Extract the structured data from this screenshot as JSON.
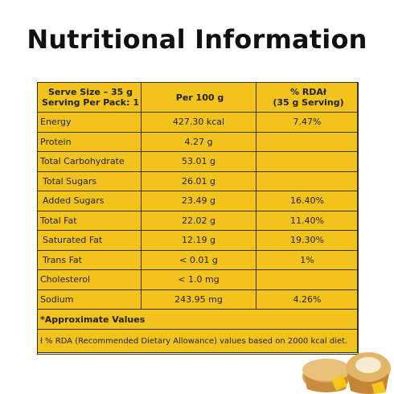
{
  "title": "Nutritional Information",
  "header": {
    "col1_line1": "Serve Size – 35 g",
    "col1_line2": "Serving Per Pack: 1",
    "col2": "Per 100 g",
    "col3_line1": "% RDAł",
    "col3_line2": "(35 g Serving)"
  },
  "rows": [
    {
      "name": "Energy",
      "per100": "427.30 kcal",
      "rda": "7.47%",
      "indent": false
    },
    {
      "name": "Protein",
      "per100": "4.27 g",
      "rda": "",
      "indent": false
    },
    {
      "name": "Total Carbohydrate",
      "per100": "53.01 g",
      "rda": "",
      "indent": false
    },
    {
      "name": "Total Sugars",
      "per100": "26.01 g",
      "rda": "",
      "indent": true
    },
    {
      "name": "Added Sugars",
      "per100": "23.49 g",
      "rda": "16.40%",
      "indent": true
    },
    {
      "name": "Total Fat",
      "per100": "22.02 g",
      "rda": "11.40%",
      "indent": false
    },
    {
      "name": "Saturated Fat",
      "per100": "12.19 g",
      "rda": "19.30%",
      "indent": true
    },
    {
      "name": "Trans Fat",
      "per100": "< 0.01 g",
      "rda": "1%",
      "indent": true
    },
    {
      "name": "Cholesterol",
      "per100": "< 1.0 mg",
      "rda": "",
      "indent": false
    },
    {
      "name": "Sodium",
      "per100": "243.95 mg",
      "rda": "4.26%",
      "indent": false
    }
  ],
  "footnote1": "*Approximate Values",
  "footnote2": "ł % RDA (Recommended Dietary Allowance) values based on 2000 kcal diet.",
  "colors": {
    "panel": "#f2c31a",
    "border": "#3a3000"
  }
}
